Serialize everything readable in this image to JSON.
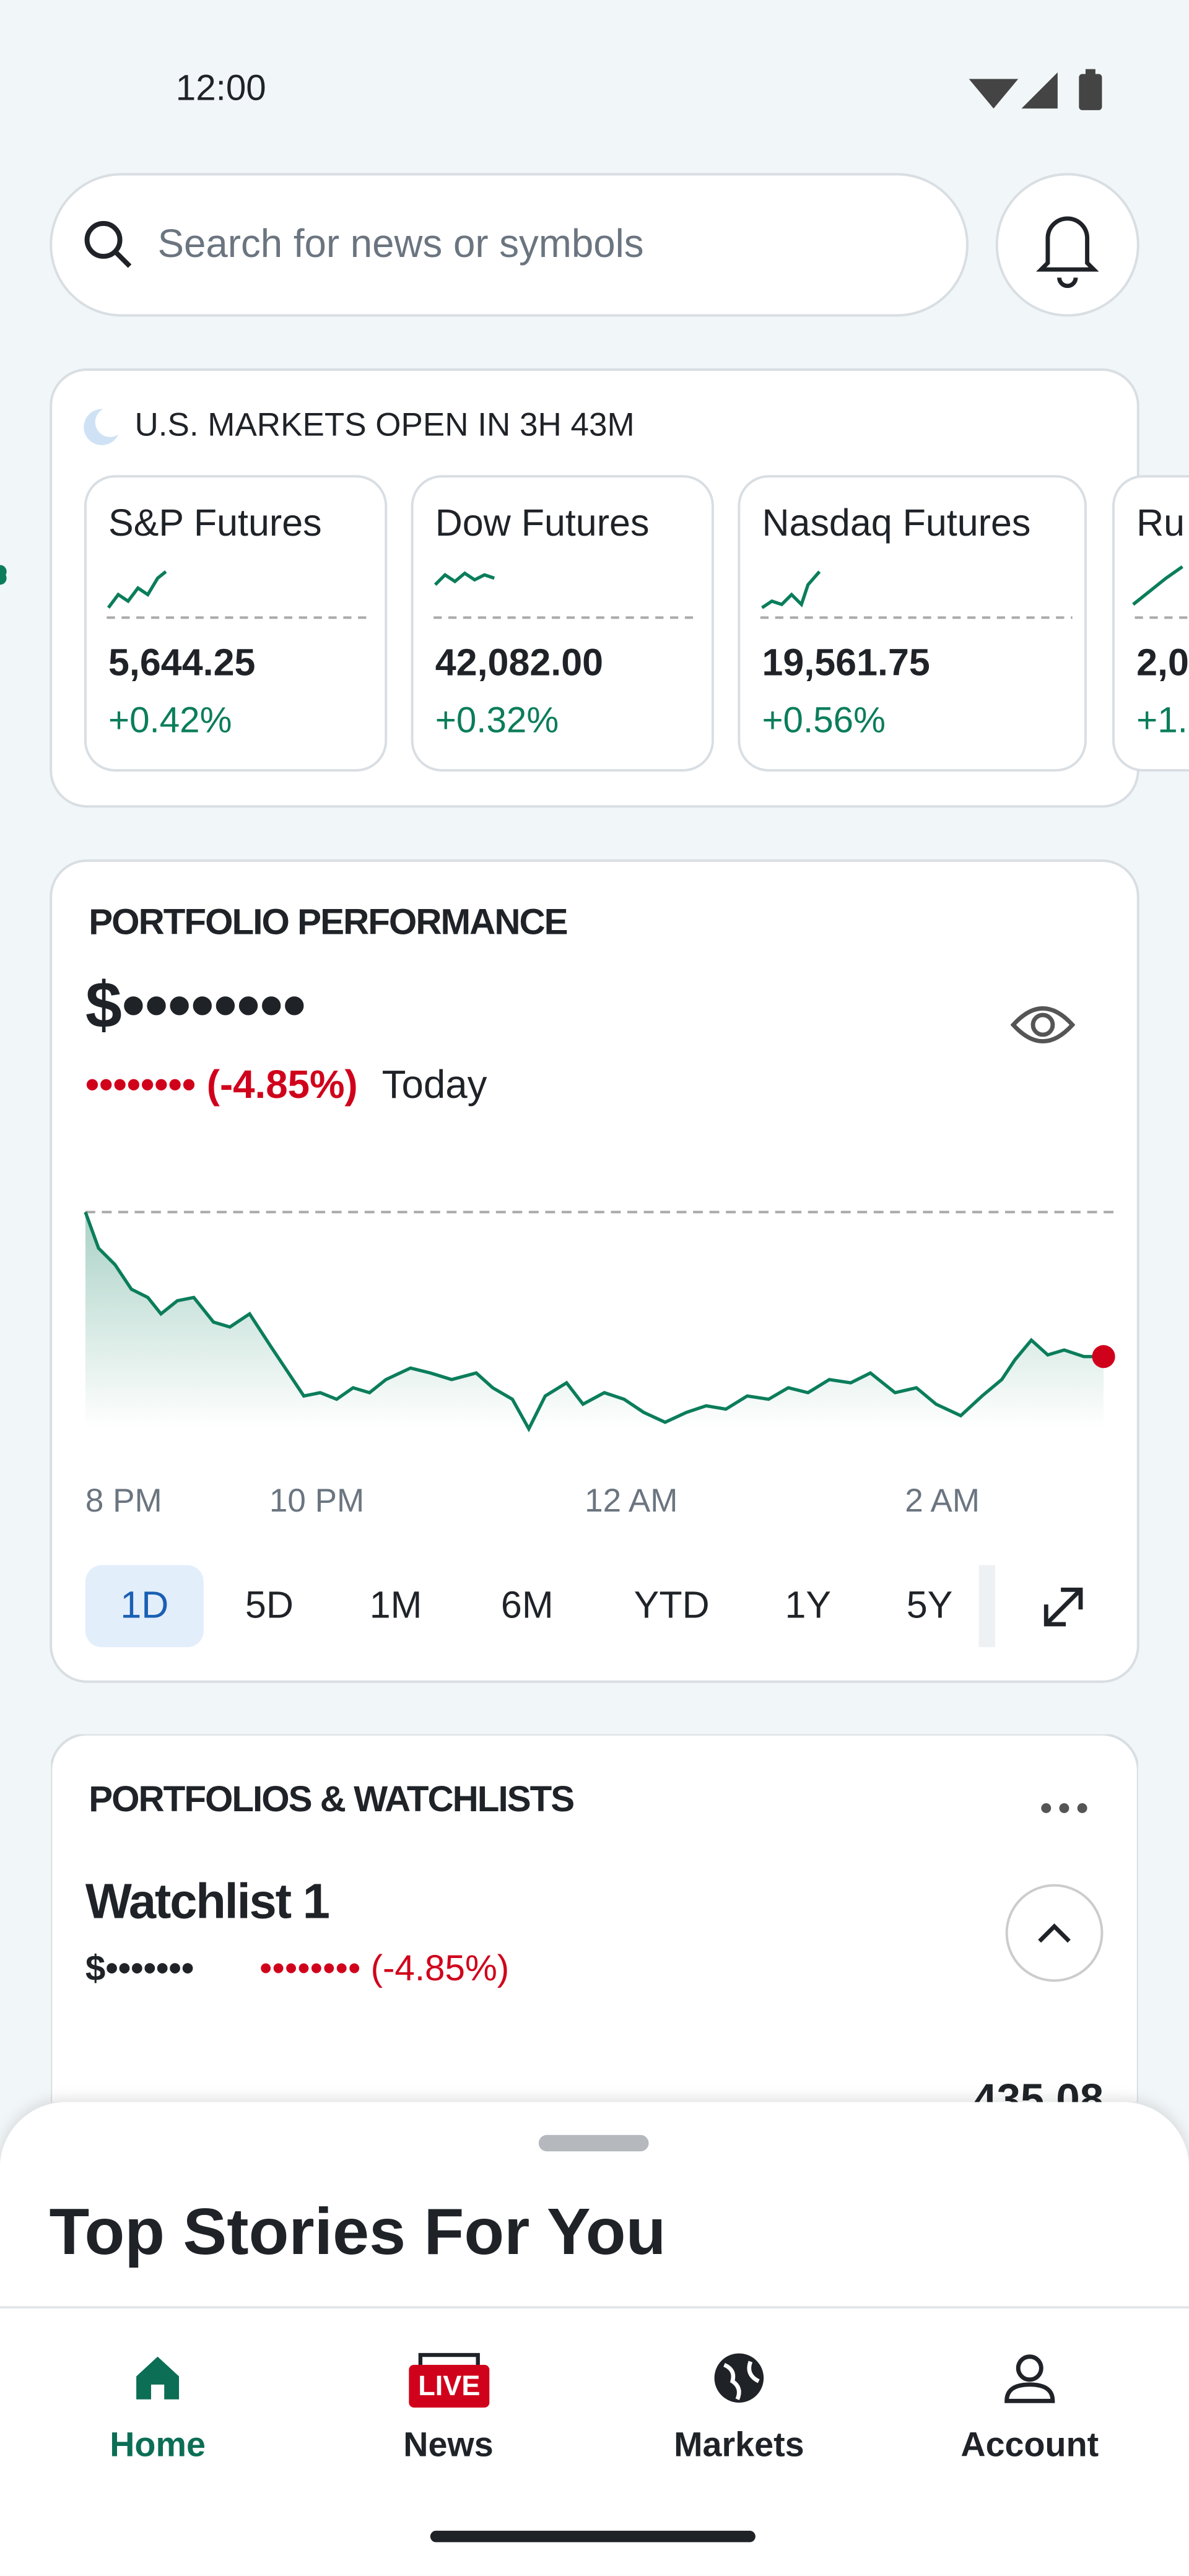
{
  "status_bar": {
    "time": "12:00"
  },
  "search": {
    "placeholder": "Search for news or symbols"
  },
  "markets": {
    "banner": "U.S. MARKETS OPEN IN 3H 43M",
    "futures": [
      {
        "name": "S&P Futures",
        "price": "5,644.25",
        "change": "+0.42%"
      },
      {
        "name": "Dow Futures",
        "price": "42,082.00",
        "change": "+0.32%"
      },
      {
        "name": "Nasdaq Futures",
        "price": "19,561.75",
        "change": "+0.56%"
      },
      {
        "name": "Ru",
        "price": "2,0",
        "change": "+1."
      }
    ]
  },
  "portfolio": {
    "title": "PORTFOLIO PERFORMANCE",
    "value": "$••••••••",
    "change": "•••••••• (-4.85%)",
    "period": "Today",
    "x_labels": [
      "8 PM",
      "10 PM",
      "12 AM",
      "2 AM"
    ],
    "ranges": [
      "1D",
      "5D",
      "1M",
      "6M",
      "YTD",
      "1Y",
      "5Y"
    ]
  },
  "watchlists": {
    "title": "PORTFOLIOS & WATCHLISTS",
    "name": "Watchlist 1",
    "value": "$•••••••",
    "change": "•••••••• (-4.85%)",
    "peek": "435.08"
  },
  "stories": {
    "title": "Top Stories For You"
  },
  "nav": {
    "badge": "LIVE",
    "items": [
      "Home",
      "News",
      "Markets",
      "Account"
    ]
  }
}
